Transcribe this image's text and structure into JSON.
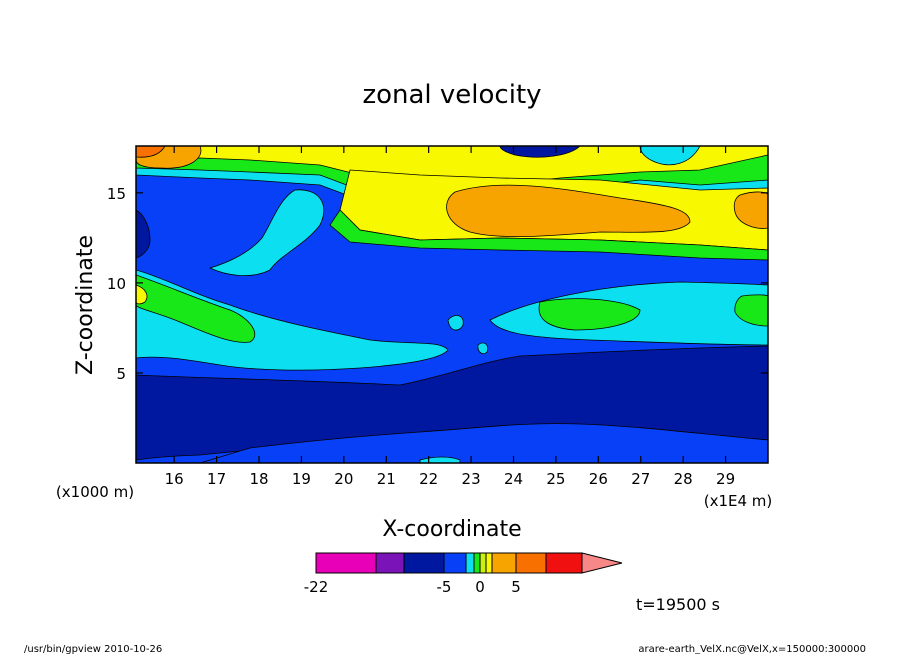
{
  "chart_data": {
    "type": "heatmap",
    "title": "zonal velocity",
    "xlabel": "X-coordinate",
    "ylabel": "Z-coordinate",
    "x_unit": "(x1E4 m)",
    "y_unit": "(x1000 m)",
    "xlim": [
      15.1,
      30
    ],
    "ylim": [
      0,
      17.6
    ],
    "x_ticks": [
      "16",
      "17",
      "18",
      "19",
      "20",
      "21",
      "22",
      "23",
      "24",
      "25",
      "26",
      "27",
      "28",
      "29"
    ],
    "y_ticks": [
      "5",
      "10",
      "15"
    ],
    "colorbar": {
      "levels": [
        -22,
        -15,
        -9,
        -5,
        -3,
        -1,
        0,
        1,
        2,
        5,
        8,
        11
      ],
      "tick_labels": [
        "-22",
        "-5",
        "0",
        "5"
      ],
      "tick_values": [
        -22,
        -5,
        0,
        5
      ],
      "colors": [
        "#e800b8",
        "#7a14b8",
        "#0018a0",
        "#0840f8",
        "#0ce0f0",
        "#18e818",
        "#c8f010",
        "#f8f800",
        "#f8a400",
        "#f87000",
        "#f01010",
        "#f88888"
      ]
    },
    "time_label": "t=19500 s",
    "grid": false
  },
  "footer": {
    "left": "/usr/bin/gpview   2010-10-26",
    "right": "arare-earth_VelX.nc@VelX,x=150000:300000"
  }
}
